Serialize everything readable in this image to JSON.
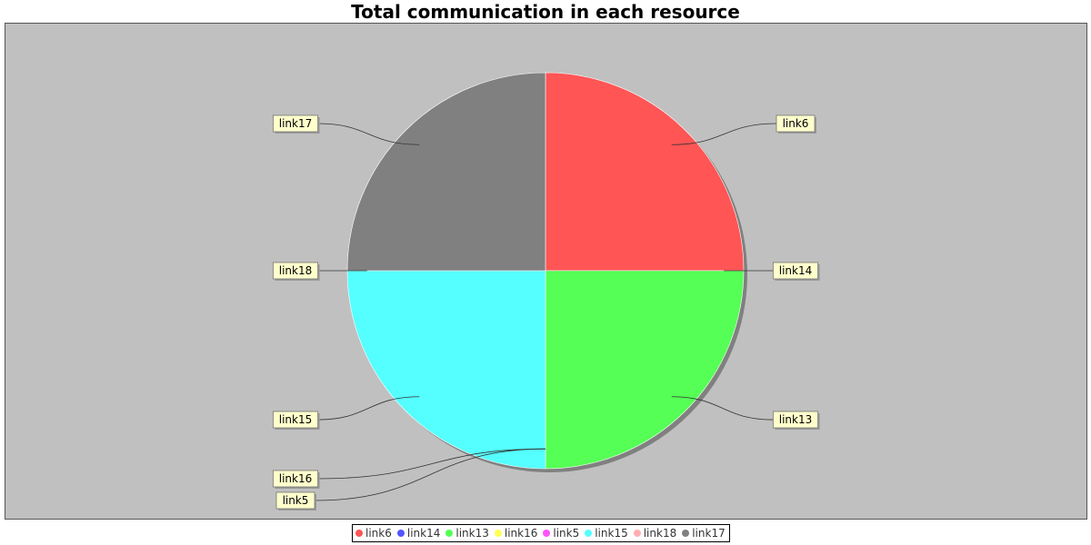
{
  "chart_data": {
    "type": "pie",
    "title": "Total communication in each resource",
    "categories": [
      "link6",
      "link14",
      "link13",
      "link16",
      "link5",
      "link15",
      "link18",
      "link17"
    ],
    "values": [
      25,
      0,
      25,
      0,
      0,
      25,
      0,
      25
    ],
    "colors": [
      "#ff5555",
      "#5555ff",
      "#55ff55",
      "#ffff55",
      "#ff55ff",
      "#55ffff",
      "#ffafaf",
      "#808080"
    ],
    "legend": {
      "position": "bottom",
      "entries": [
        "link6",
        "link14",
        "link13",
        "link16",
        "link5",
        "link15",
        "link18",
        "link17"
      ]
    },
    "plot_background": "#c0c0c0",
    "label_background": "#ffffcc"
  }
}
